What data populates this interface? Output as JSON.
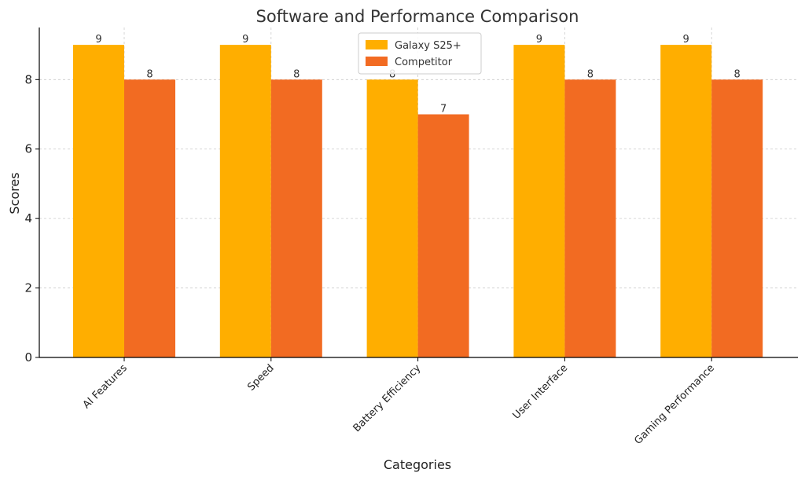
{
  "chart_data": {
    "type": "bar",
    "title": "Software and Performance Comparison",
    "xlabel": "Categories",
    "ylabel": "Scores",
    "categories": [
      "AI Features",
      "Speed",
      "Battery Efficiency",
      "User Interface",
      "Gaming Performance"
    ],
    "series": [
      {
        "name": "Galaxy S25+",
        "values": [
          9,
          9,
          8,
          9,
          9
        ],
        "color": "#FFAE00"
      },
      {
        "name": "Competitor",
        "values": [
          8,
          8,
          7,
          8,
          8
        ],
        "color": "#F26B22"
      }
    ],
    "ylim": [
      0,
      9.5
    ],
    "yticks": [
      0,
      2,
      4,
      6,
      8
    ],
    "grid": true,
    "legend_position": "top-center",
    "data_labels": true
  }
}
